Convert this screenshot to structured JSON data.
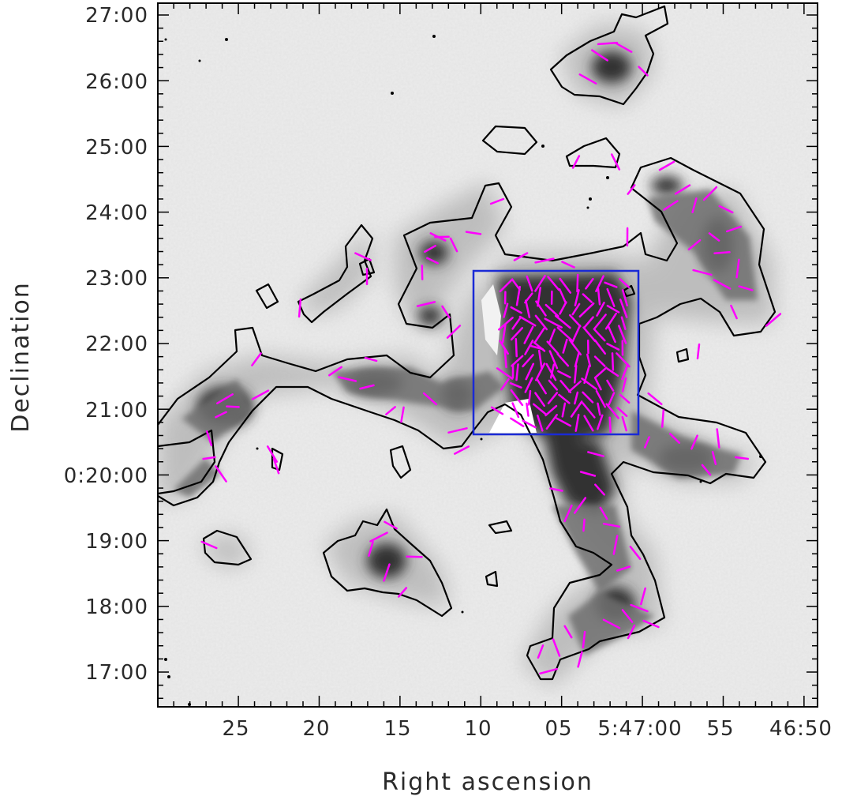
{
  "chart_data": {
    "type": "map",
    "xlabel": "Right ascension",
    "ylabel": "Declination",
    "x_ticks": [
      "25",
      "20",
      "15",
      "10",
      "05",
      "5:47:00",
      "55",
      "46:50"
    ],
    "y_ticks": [
      "27:00",
      "26:00",
      "25:00",
      "24:00",
      "23:00",
      "22:00",
      "21:00",
      "0:20:00",
      "19:00",
      "18:00",
      "17:00"
    ],
    "colors": {
      "background": "#eeeeee",
      "emission": "#303030",
      "contour": "#000000",
      "vectors": "#ff00ff",
      "box": "#1a2ad6",
      "frame": "#000000"
    },
    "box_region": {
      "ra_min": "5:46:59",
      "ra_max": "5:47:10",
      "dec_min": "0:20:36",
      "dec_max": "0:23:06"
    },
    "contour_level": "single contour",
    "vector_color_name": "magenta polarization vectors"
  }
}
